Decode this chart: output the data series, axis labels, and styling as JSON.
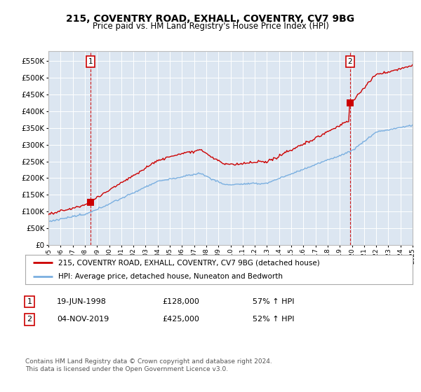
{
  "title": "215, COVENTRY ROAD, EXHALL, COVENTRY, CV7 9BG",
  "subtitle": "Price paid vs. HM Land Registry's House Price Index (HPI)",
  "plot_bg_color": "#dce6f1",
  "hpi_color": "#7aafe0",
  "price_color": "#cc0000",
  "annotation1_date": "19-JUN-1998",
  "annotation1_price": 128000,
  "annotation1_pct": "57% ↑ HPI",
  "annotation2_date": "04-NOV-2019",
  "annotation2_price": 425000,
  "annotation2_pct": "52% ↑ HPI",
  "legend_line1": "215, COVENTRY ROAD, EXHALL, COVENTRY, CV7 9BG (detached house)",
  "legend_line2": "HPI: Average price, detached house, Nuneaton and Bedworth",
  "footer": "Contains HM Land Registry data © Crown copyright and database right 2024.\nThis data is licensed under the Open Government Licence v3.0.",
  "ylim": [
    0,
    580000
  ],
  "yticks": [
    0,
    50000,
    100000,
    150000,
    200000,
    250000,
    300000,
    350000,
    400000,
    450000,
    500000,
    550000
  ],
  "year_start": 1995,
  "year_end": 2025
}
